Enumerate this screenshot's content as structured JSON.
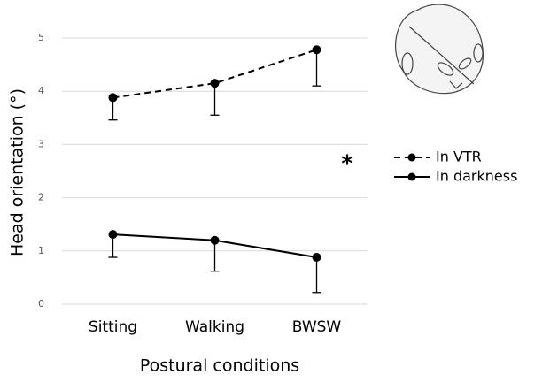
{
  "chart_data": {
    "type": "line",
    "y_label": "Head orientation (°)",
    "x_label": "Postural conditions",
    "categories": [
      "Sitting",
      "Walking",
      "BWSW"
    ],
    "series": [
      {
        "name": "In VTR",
        "color": "#000000",
        "linestyle": "dashed",
        "values": [
          3.88,
          4.15,
          4.78
        ],
        "errors": [
          0.42,
          0.6,
          0.68
        ]
      },
      {
        "name": "In darkness",
        "color": "#000000",
        "linestyle": "solid",
        "values": [
          1.31,
          1.2,
          0.88
        ],
        "errors": [
          0.43,
          0.58,
          0.66
        ]
      }
    ],
    "annotation": "*",
    "ylim": [
      0,
      5
    ],
    "yticks": [
      0,
      1,
      2,
      3,
      4,
      5
    ],
    "grid": true
  }
}
